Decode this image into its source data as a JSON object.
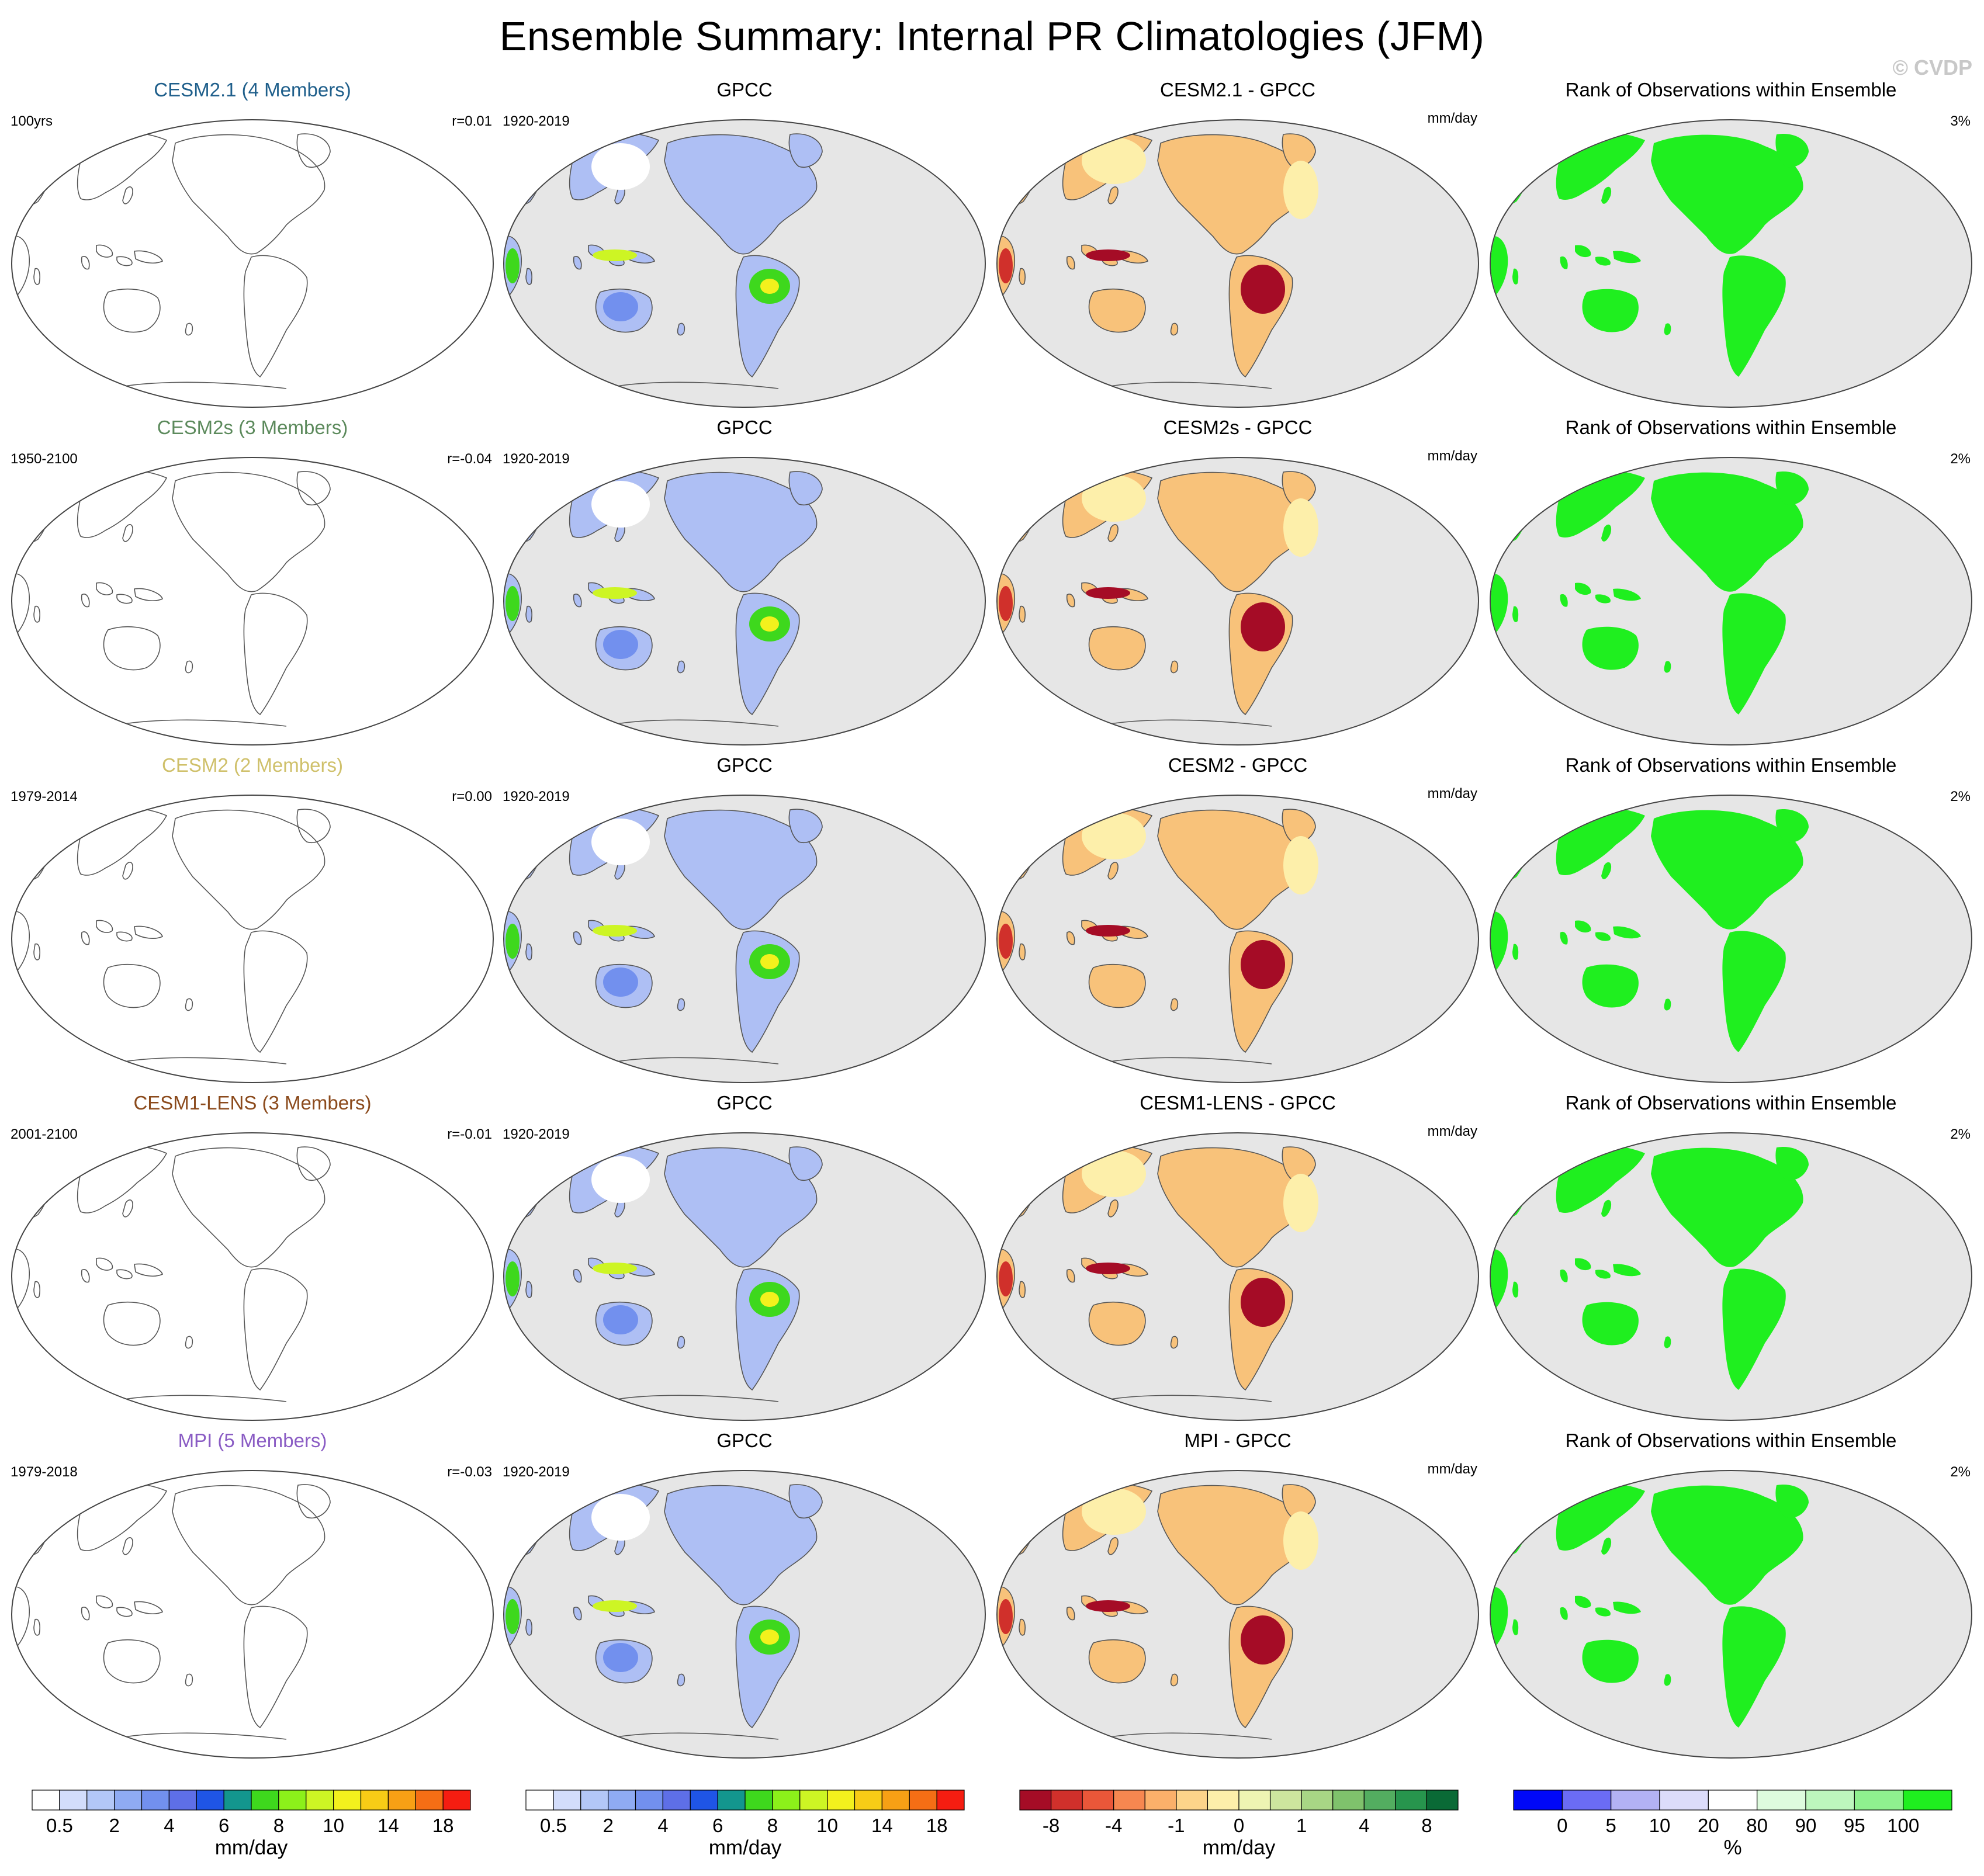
{
  "title": "Ensemble Summary: Internal PR Climatologies (JFM)",
  "watermark": "© CVDP",
  "rows": [
    {
      "model": "CESM2.1 (4 Members)",
      "model_color": "#1f5f8b",
      "model_years": "100yrs",
      "corr": "r=0.01",
      "obs": "GPCC",
      "obs_years": "1920-2019",
      "diff_title": "CESM2.1 - GPCC",
      "diff_units": "mm/day",
      "rank_title": "Rank of Observations within Ensemble",
      "rank_pct": "3%"
    },
    {
      "model": "CESM2s (3 Members)",
      "model_color": "#5c8a5c",
      "model_years": "1950-2100",
      "corr": "r=-0.04",
      "obs": "GPCC",
      "obs_years": "1920-2019",
      "diff_title": "CESM2s - GPCC",
      "diff_units": "mm/day",
      "rank_title": "Rank of Observations within Ensemble",
      "rank_pct": "2%"
    },
    {
      "model": "CESM2 (2 Members)",
      "model_color": "#cfc06a",
      "model_years": "1979-2014",
      "corr": "r=0.00",
      "obs": "GPCC",
      "obs_years": "1920-2019",
      "diff_title": "CESM2 - GPCC",
      "diff_units": "mm/day",
      "rank_title": "Rank of Observations within Ensemble",
      "rank_pct": "2%"
    },
    {
      "model": "CESM1-LENS (3 Members)",
      "model_color": "#8b4a1c",
      "model_years": "2001-2100",
      "corr": "r=-0.01",
      "obs": "GPCC",
      "obs_years": "1920-2019",
      "diff_title": "CESM1-LENS - GPCC",
      "diff_units": "mm/day",
      "rank_title": "Rank of Observations within Ensemble",
      "rank_pct": "2%"
    },
    {
      "model": "MPI (5 Members)",
      "model_color": "#8a5cc4",
      "model_years": "1979-2018",
      "corr": "r=-0.03",
      "obs": "GPCC",
      "obs_years": "1920-2019",
      "diff_title": "MPI - GPCC",
      "diff_units": "mm/day",
      "rank_title": "Rank of Observations within Ensemble",
      "rank_pct": "2%"
    }
  ],
  "colorbars": [
    {
      "units": "mm/day",
      "colors": [
        "#ffffff",
        "#d3ddfb",
        "#b3c7f7",
        "#8fabf3",
        "#7290ee",
        "#5e6fe7",
        "#1f55e6",
        "#13968e",
        "#3ed81d",
        "#8cf01a",
        "#cdf524",
        "#f3f11d",
        "#f7cc16",
        "#f7a015",
        "#f56e15",
        "#f51d11"
      ],
      "labels": [
        {
          "text": "0.5",
          "edge": 1
        },
        {
          "text": "2",
          "edge": 3
        },
        {
          "text": "4",
          "edge": 5
        },
        {
          "text": "6",
          "edge": 7
        },
        {
          "text": "8",
          "edge": 9
        },
        {
          "text": "10",
          "edge": 11
        },
        {
          "text": "14",
          "edge": 13
        },
        {
          "text": "18",
          "edge": 15
        }
      ]
    },
    {
      "units": "mm/day",
      "colors": [
        "#ffffff",
        "#d3ddfb",
        "#b3c7f7",
        "#8fabf3",
        "#7290ee",
        "#5e6fe7",
        "#1f55e6",
        "#13968e",
        "#3ed81d",
        "#8cf01a",
        "#cdf524",
        "#f3f11d",
        "#f7cc16",
        "#f7a015",
        "#f56e15",
        "#f51d11"
      ],
      "labels": [
        {
          "text": "0.5",
          "edge": 1
        },
        {
          "text": "2",
          "edge": 3
        },
        {
          "text": "4",
          "edge": 5
        },
        {
          "text": "6",
          "edge": 7
        },
        {
          "text": "8",
          "edge": 9
        },
        {
          "text": "10",
          "edge": 11
        },
        {
          "text": "14",
          "edge": 13
        },
        {
          "text": "18",
          "edge": 15
        }
      ]
    },
    {
      "units": "mm/day",
      "colors": [
        "#a50c26",
        "#d0302b",
        "#ea5739",
        "#f68750",
        "#fbb06a",
        "#fdd48a",
        "#fdefaa",
        "#eef4b3",
        "#cde69e",
        "#a8d685",
        "#7fc26c",
        "#53ad60",
        "#27954d",
        "#0a6a36"
      ],
      "labels": [
        {
          "text": "-8",
          "edge": 1
        },
        {
          "text": "-4",
          "edge": 3
        },
        {
          "text": "-1",
          "edge": 5
        },
        {
          "text": "0",
          "edge": 7
        },
        {
          "text": "1",
          "edge": 9
        },
        {
          "text": "4",
          "edge": 11
        },
        {
          "text": "8",
          "edge": 13
        }
      ]
    },
    {
      "units": "%",
      "colors": [
        "#0008f8",
        "#6b6cf4",
        "#b3b2f4",
        "#dcdcfa",
        "#ffffff",
        "#defbde",
        "#bdf6bd",
        "#8ff08f",
        "#1fef1f"
      ],
      "labels": [
        {
          "text": "0",
          "edge": 1
        },
        {
          "text": "5",
          "edge": 2
        },
        {
          "text": "10",
          "edge": 3
        },
        {
          "text": "20",
          "edge": 4
        },
        {
          "text": "80",
          "edge": 5
        },
        {
          "text": "90",
          "edge": 6
        },
        {
          "text": "95",
          "edge": 7
        },
        {
          "text": "100",
          "edge": 8
        }
      ]
    }
  ]
}
